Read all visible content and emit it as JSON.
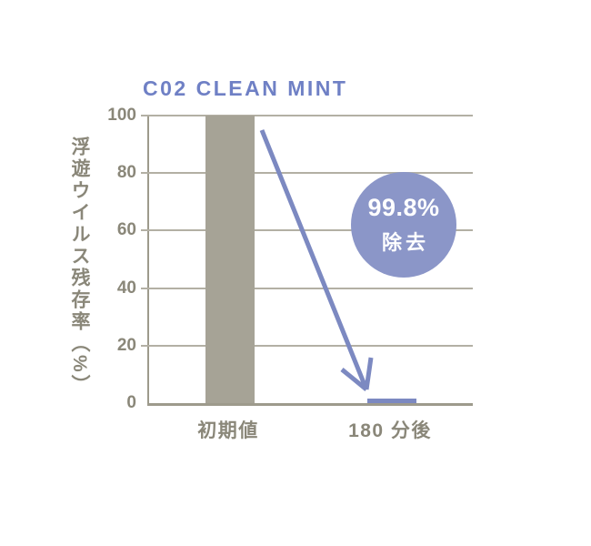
{
  "header": {
    "title": "C02 CLEAN MINT"
  },
  "badge": {
    "line1": "99.8%",
    "line2": "除去"
  },
  "colors": {
    "title_blue": "#6f80c5",
    "arrow_blue": "#7c89c1",
    "badge_blue": "#8b96c8",
    "badge_text": "#ffffff",
    "bar_gray": "#a6a396",
    "bar_blue": "#7c89c1",
    "axis_gray": "#9d9a8c",
    "grid_gray": "#b3b0a4",
    "label_gray": "#8a8779"
  },
  "chart_data": {
    "type": "bar",
    "title": "C02 CLEAN MINT",
    "ylabel": "浮遊ウイルス残存率（%）",
    "xlabel": "",
    "categories": [
      "初期値",
      "180 分後"
    ],
    "values": [
      100,
      0.2
    ],
    "bar_colors": [
      "#a6a396",
      "#7c89c1"
    ],
    "yticks": [
      0,
      20,
      40,
      60,
      80,
      100
    ],
    "ylim": [
      0,
      100
    ],
    "grid": true,
    "legend": false,
    "annotations": [
      "99.8% 除去"
    ]
  }
}
